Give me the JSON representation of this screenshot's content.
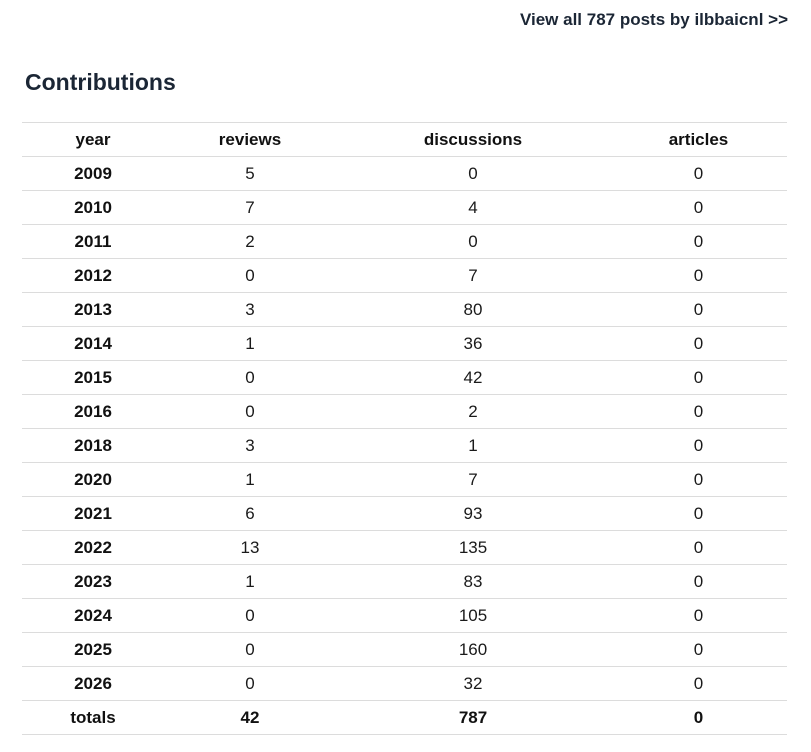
{
  "header": {
    "view_all_link": "View all 787 posts by ilbbaicnl >>"
  },
  "section": {
    "title": "Contributions"
  },
  "table": {
    "columns": [
      "year",
      "reviews",
      "discussions",
      "articles"
    ],
    "rows": [
      {
        "year": "2009",
        "reviews": "5",
        "discussions": "0",
        "articles": "0"
      },
      {
        "year": "2010",
        "reviews": "7",
        "discussions": "4",
        "articles": "0"
      },
      {
        "year": "2011",
        "reviews": "2",
        "discussions": "0",
        "articles": "0"
      },
      {
        "year": "2012",
        "reviews": "0",
        "discussions": "7",
        "articles": "0"
      },
      {
        "year": "2013",
        "reviews": "3",
        "discussions": "80",
        "articles": "0"
      },
      {
        "year": "2014",
        "reviews": "1",
        "discussions": "36",
        "articles": "0"
      },
      {
        "year": "2015",
        "reviews": "0",
        "discussions": "42",
        "articles": "0"
      },
      {
        "year": "2016",
        "reviews": "0",
        "discussions": "2",
        "articles": "0"
      },
      {
        "year": "2018",
        "reviews": "3",
        "discussions": "1",
        "articles": "0"
      },
      {
        "year": "2020",
        "reviews": "1",
        "discussions": "7",
        "articles": "0"
      },
      {
        "year": "2021",
        "reviews": "6",
        "discussions": "93",
        "articles": "0"
      },
      {
        "year": "2022",
        "reviews": "13",
        "discussions": "135",
        "articles": "0"
      },
      {
        "year": "2023",
        "reviews": "1",
        "discussions": "83",
        "articles": "0"
      },
      {
        "year": "2024",
        "reviews": "0",
        "discussions": "105",
        "articles": "0"
      },
      {
        "year": "2025",
        "reviews": "0",
        "discussions": "160",
        "articles": "0"
      },
      {
        "year": "2026",
        "reviews": "0",
        "discussions": "32",
        "articles": "0"
      }
    ],
    "totals": {
      "year": "totals",
      "reviews": "42",
      "discussions": "787",
      "articles": "0"
    }
  },
  "colors": {
    "background": "#ffffff",
    "heading": "#1b2635",
    "link": "#1b2635",
    "text": "#1a1a1a",
    "divider": "#dcdcdc"
  }
}
